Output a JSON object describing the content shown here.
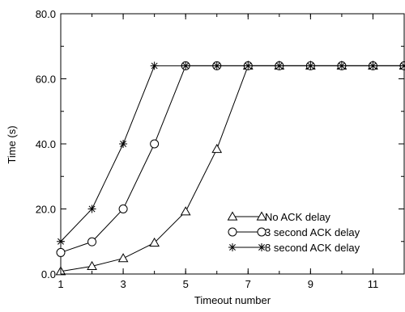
{
  "chart_data": {
    "type": "line",
    "title": "",
    "xlabel": "Timeout number",
    "ylabel": "Time (s)",
    "xlim": [
      1,
      12
    ],
    "ylim": [
      0,
      80
    ],
    "x_ticks": [
      1,
      3,
      5,
      7,
      9,
      11
    ],
    "x_tick_labels": [
      "1",
      "3",
      "5",
      "7",
      "9",
      "11"
    ],
    "y_ticks": [
      0,
      20,
      40,
      60,
      80
    ],
    "y_tick_labels": [
      "0.0",
      "20.0",
      "40.0",
      "60.0",
      "80.0"
    ],
    "grid": false,
    "legend_position": "bottom-right",
    "series": [
      {
        "name": "No ACK delay",
        "marker": "triangle",
        "x": [
          1,
          2,
          3,
          4,
          5,
          6,
          7,
          8,
          9,
          10,
          11,
          12
        ],
        "values": [
          0.8,
          2.4,
          4.8,
          9.6,
          19.2,
          38.4,
          64,
          64,
          64,
          64,
          64,
          64
        ]
      },
      {
        "name": "3 second ACK delay",
        "marker": "circle",
        "x": [
          1,
          2,
          3,
          4,
          5,
          6,
          7,
          8,
          9,
          10,
          11,
          12
        ],
        "values": [
          6.6,
          9.9,
          20,
          40,
          64,
          64,
          64,
          64,
          64,
          64,
          64,
          64
        ]
      },
      {
        "name": "8 second ACK delay",
        "marker": "asterisk",
        "x": [
          1,
          2,
          3,
          4,
          5,
          6,
          7,
          8,
          9,
          10,
          11,
          12
        ],
        "values": [
          10,
          20,
          40,
          64,
          64,
          64,
          64,
          64,
          64,
          64,
          64,
          64
        ]
      }
    ]
  }
}
